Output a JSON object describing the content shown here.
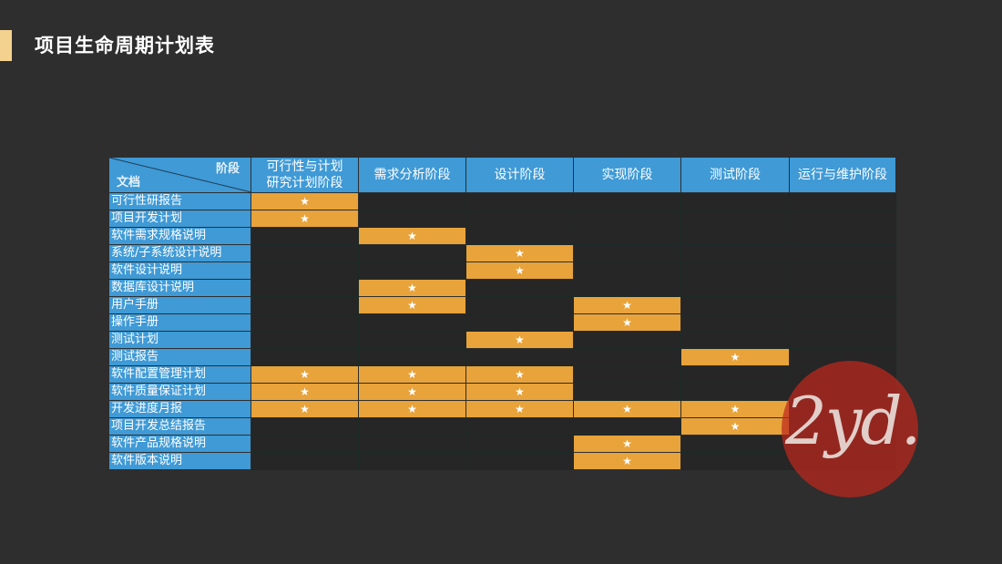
{
  "page": {
    "title": "项目生命周期计划表"
  },
  "table": {
    "corner_top": "阶段",
    "corner_bottom": "文档",
    "stages": [
      [
        "可行性与计划",
        "研究计划阶段"
      ],
      [
        "需求分析阶段"
      ],
      [
        "设计阶段"
      ],
      [
        "实现阶段"
      ],
      [
        "测试阶段"
      ],
      [
        "运行与维护阶段"
      ]
    ],
    "star": "★",
    "rows": [
      {
        "doc": "可行性研报告",
        "marks": [
          1,
          0,
          0,
          0,
          0,
          0
        ]
      },
      {
        "doc": "项目开发计划",
        "marks": [
          1,
          0,
          0,
          0,
          0,
          0
        ]
      },
      {
        "doc": "软件需求规格说明",
        "marks": [
          0,
          1,
          0,
          0,
          0,
          0
        ]
      },
      {
        "doc": "系统/子系统设计说明",
        "marks": [
          0,
          0,
          1,
          0,
          0,
          0
        ]
      },
      {
        "doc": "软件设计说明",
        "marks": [
          0,
          0,
          1,
          0,
          0,
          0
        ]
      },
      {
        "doc": "数据库设计说明",
        "marks": [
          0,
          1,
          0,
          0,
          0,
          0
        ]
      },
      {
        "doc": "用户手册",
        "marks": [
          0,
          1,
          0,
          1,
          0,
          0
        ]
      },
      {
        "doc": "操作手册",
        "marks": [
          0,
          0,
          0,
          1,
          0,
          0
        ]
      },
      {
        "doc": "测试计划",
        "marks": [
          0,
          0,
          1,
          0,
          0,
          0
        ]
      },
      {
        "doc": "测试报告",
        "marks": [
          0,
          0,
          0,
          0,
          1,
          0
        ]
      },
      {
        "doc": "软件配置管理计划",
        "marks": [
          1,
          1,
          1,
          0,
          0,
          0
        ]
      },
      {
        "doc": "软件质量保证计划",
        "marks": [
          1,
          1,
          1,
          0,
          0,
          0
        ]
      },
      {
        "doc": "开发进度月报",
        "marks": [
          1,
          1,
          1,
          1,
          1,
          0
        ]
      },
      {
        "doc": "项目开发总结报告",
        "marks": [
          0,
          0,
          0,
          0,
          1,
          0
        ]
      },
      {
        "doc": "软件产品规格说明",
        "marks": [
          0,
          0,
          0,
          1,
          0,
          0
        ]
      },
      {
        "doc": "软件版本说明",
        "marks": [
          0,
          0,
          0,
          1,
          0,
          0
        ]
      }
    ]
  },
  "watermark": {
    "text": "2yd."
  },
  "colors": {
    "background": "#2e2e2e",
    "header_blue": "#3f9ad6",
    "marked_orange": "#e8a33b",
    "empty_cell": "#262626",
    "accent": "#f3d28f",
    "watermark_red": "#be281e"
  }
}
